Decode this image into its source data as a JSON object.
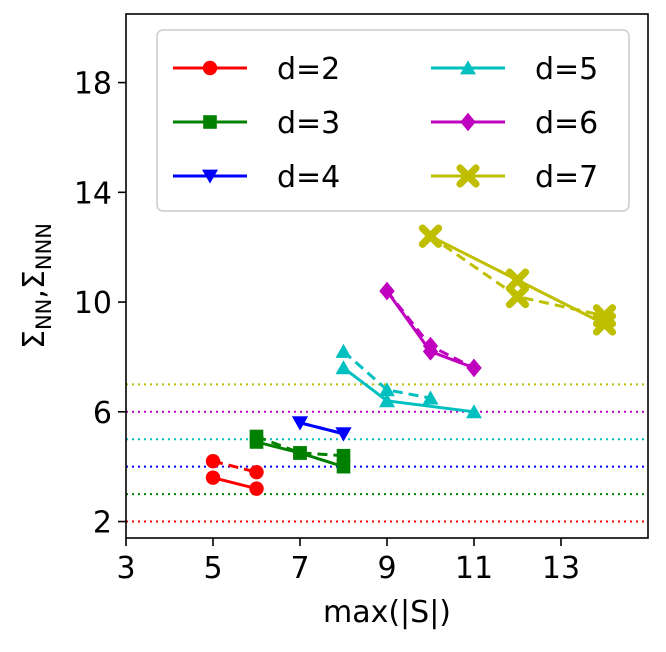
{
  "chart_data": {
    "type": "line",
    "xlabel": "max(|S|)",
    "ylabel_main": "Σ",
    "ylabel_sub1": "NN",
    "ylabel_sep": ",",
    "ylabel_sub2": "NNN",
    "xlim": [
      3,
      15
    ],
    "ylim": [
      1.4,
      20.5
    ],
    "xticks": [
      3,
      5,
      7,
      9,
      11,
      13
    ],
    "yticks": [
      2,
      6,
      10,
      14,
      18
    ],
    "legend_position": "upper-center",
    "series": [
      {
        "name": "d=2",
        "color": "#ff0000",
        "marker": "circle",
        "ref_y": 2,
        "solid": {
          "x": [
            5,
            6
          ],
          "y": [
            3.6,
            3.2
          ]
        },
        "dashed": {
          "x": [
            5,
            6
          ],
          "y": [
            4.2,
            3.8
          ]
        }
      },
      {
        "name": "d=3",
        "color": "#008000",
        "marker": "square",
        "ref_y": 3,
        "solid": {
          "x": [
            6,
            7,
            8
          ],
          "y": [
            4.9,
            4.5,
            4.0
          ]
        },
        "dashed": {
          "x": [
            6,
            7,
            8
          ],
          "y": [
            5.1,
            4.5,
            4.4
          ]
        }
      },
      {
        "name": "d=4",
        "color": "#0000ff",
        "marker": "triangle-down",
        "ref_y": 4,
        "solid": {
          "x": [
            7,
            8
          ],
          "y": [
            5.6,
            5.2
          ]
        },
        "dashed": {
          "x": [
            7,
            8
          ],
          "y": [
            5.6,
            5.2
          ]
        }
      },
      {
        "name": "d=5",
        "color": "#00bfbf",
        "marker": "triangle-up",
        "ref_y": 5,
        "solid": {
          "x": [
            8,
            9,
            11
          ],
          "y": [
            7.6,
            6.4,
            6.0
          ]
        },
        "dashed": {
          "x": [
            8,
            9,
            10
          ],
          "y": [
            8.2,
            6.8,
            6.5
          ]
        }
      },
      {
        "name": "d=6",
        "color": "#bf00bf",
        "marker": "diamond",
        "ref_y": 6,
        "solid": {
          "x": [
            9,
            10,
            11
          ],
          "y": [
            10.4,
            8.2,
            7.6
          ]
        },
        "dashed": {
          "x": [
            9,
            10,
            11
          ],
          "y": [
            10.4,
            8.4,
            7.6
          ]
        }
      },
      {
        "name": "d=7",
        "color": "#bfbf00",
        "marker": "x-filled",
        "ref_y": 7,
        "solid": {
          "x": [
            10,
            12,
            14
          ],
          "y": [
            12.4,
            10.8,
            9.2
          ]
        },
        "dashed": {
          "x": [
            10,
            12,
            14
          ],
          "y": [
            12.4,
            10.2,
            9.5
          ]
        }
      }
    ]
  }
}
